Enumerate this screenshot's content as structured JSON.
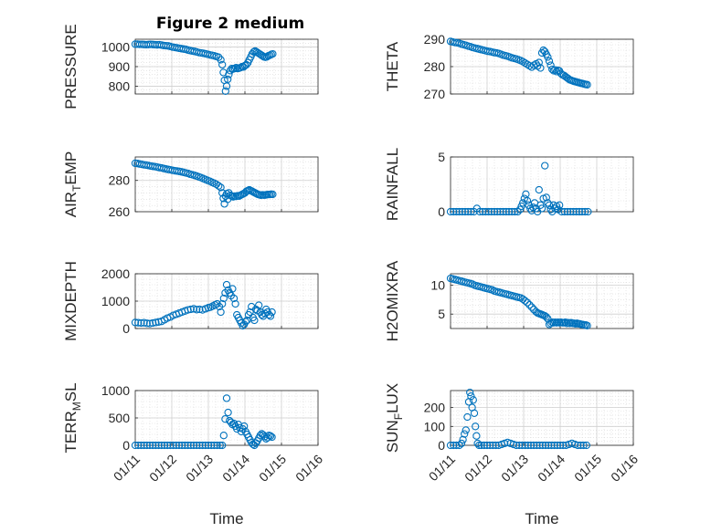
{
  "figure": {
    "title": "Figure 2 medium",
    "xlabel": "Time",
    "xticklabels": [
      "01/11",
      "01/12",
      "01/13",
      "01/14",
      "01/15",
      "01/16"
    ]
  },
  "chart_data": [
    {
      "type": "scatter",
      "ylabel": "PRESSURE",
      "ylim": [
        760,
        1040
      ],
      "yticks": [
        800,
        900,
        1000
      ],
      "yticklabels": [
        "800",
        "900",
        "1000"
      ],
      "grid": true,
      "x": [
        0.0,
        0.06,
        0.12,
        0.18,
        0.24,
        0.3,
        0.36,
        0.42,
        0.48,
        0.54,
        0.6,
        0.66,
        0.72,
        0.78,
        0.84,
        0.9,
        0.96,
        1.02,
        1.08,
        1.14,
        1.2,
        1.26,
        1.32,
        1.38,
        1.44,
        1.5,
        1.56,
        1.62,
        1.68,
        1.74,
        1.8,
        1.86,
        1.92,
        1.98,
        2.04,
        2.1,
        2.16,
        2.22,
        2.28,
        2.34,
        2.38,
        2.41,
        2.44,
        2.47,
        2.5,
        2.53,
        2.56,
        2.6,
        2.64,
        2.68,
        2.72,
        2.76,
        2.8,
        2.84,
        2.88,
        2.92,
        2.96,
        3.0,
        3.04,
        3.08,
        3.12,
        3.16,
        3.2,
        3.24,
        3.28,
        3.32,
        3.36,
        3.4,
        3.44,
        3.48,
        3.52,
        3.56,
        3.6,
        3.64,
        3.68,
        3.72,
        3.76
      ],
      "y": [
        1015,
        1015,
        1014,
        1014,
        1013,
        1012,
        1013,
        1014,
        1013,
        1012,
        1011,
        1012,
        1010,
        1008,
        1007,
        1006,
        1003,
        1000,
        998,
        996,
        994,
        992,
        990,
        988,
        985,
        982,
        980,
        978,
        975,
        972,
        970,
        968,
        966,
        963,
        960,
        958,
        955,
        952,
        948,
        935,
        910,
        870,
        830,
        775,
        800,
        835,
        860,
        880,
        890,
        888,
        890,
        895,
        890,
        892,
        895,
        900,
        898,
        905,
        910,
        920,
        935,
        950,
        965,
        975,
        980,
        975,
        970,
        965,
        960,
        955,
        950,
        948,
        950,
        955,
        958,
        962,
        965
      ]
    },
    {
      "type": "scatter",
      "ylabel": "THETA",
      "ylim": [
        270,
        290
      ],
      "yticks": [
        270,
        280,
        290
      ],
      "yticklabels": [
        "270",
        "280",
        "290"
      ],
      "grid": true,
      "x": [
        0.0,
        0.06,
        0.12,
        0.18,
        0.24,
        0.3,
        0.36,
        0.42,
        0.48,
        0.54,
        0.6,
        0.66,
        0.72,
        0.78,
        0.84,
        0.9,
        0.96,
        1.02,
        1.08,
        1.14,
        1.2,
        1.26,
        1.32,
        1.38,
        1.44,
        1.5,
        1.56,
        1.62,
        1.68,
        1.74,
        1.8,
        1.86,
        1.92,
        1.98,
        2.04,
        2.1,
        2.16,
        2.22,
        2.28,
        2.34,
        2.38,
        2.42,
        2.46,
        2.5,
        2.54,
        2.58,
        2.62,
        2.66,
        2.7,
        2.74,
        2.78,
        2.82,
        2.86,
        2.9,
        2.94,
        2.98,
        3.02,
        3.06,
        3.1,
        3.14,
        3.18,
        3.22,
        3.26,
        3.3,
        3.34,
        3.38,
        3.42,
        3.46,
        3.5,
        3.54,
        3.58,
        3.62,
        3.66,
        3.7,
        3.74
      ],
      "y": [
        289.2,
        289.0,
        288.8,
        288.7,
        288.5,
        288.2,
        288.0,
        287.8,
        287.5,
        287.3,
        287.0,
        286.8,
        286.6,
        286.4,
        286.2,
        286.0,
        285.8,
        285.6,
        285.5,
        285.3,
        285.1,
        285.0,
        284.8,
        284.5,
        284.2,
        284.0,
        283.8,
        283.5,
        283.2,
        283.0,
        282.8,
        282.5,
        282.2,
        281.8,
        281.3,
        280.8,
        280.3,
        279.8,
        280.5,
        281.0,
        280.2,
        281.5,
        279.5,
        285.0,
        286.0,
        285.5,
        284.5,
        283.5,
        282.0,
        280.5,
        279.0,
        278.5,
        278.8,
        278.2,
        278.6,
        278.4,
        277.5,
        277.0,
        276.8,
        276.4,
        276.0,
        275.6,
        275.2,
        275.0,
        274.8,
        274.6,
        274.5,
        274.3,
        274.2,
        274.0,
        273.9,
        273.8,
        273.6,
        273.5,
        273.4
      ]
    },
    {
      "type": "scatter",
      "ylabel": "AIR_TEMP",
      "ylim": [
        260,
        295
      ],
      "yticks": [
        260,
        280
      ],
      "yticklabels": [
        "260",
        "280"
      ],
      "grid": true,
      "x": [
        0.0,
        0.06,
        0.12,
        0.18,
        0.24,
        0.3,
        0.36,
        0.42,
        0.48,
        0.54,
        0.6,
        0.66,
        0.72,
        0.78,
        0.84,
        0.9,
        0.96,
        1.02,
        1.08,
        1.14,
        1.2,
        1.26,
        1.32,
        1.38,
        1.44,
        1.5,
        1.56,
        1.62,
        1.68,
        1.74,
        1.8,
        1.86,
        1.92,
        1.98,
        2.04,
        2.1,
        2.16,
        2.22,
        2.28,
        2.34,
        2.38,
        2.41,
        2.44,
        2.47,
        2.5,
        2.53,
        2.56,
        2.6,
        2.64,
        2.68,
        2.72,
        2.76,
        2.8,
        2.84,
        2.88,
        2.92,
        2.96,
        3.0,
        3.04,
        3.08,
        3.12,
        3.16,
        3.2,
        3.24,
        3.28,
        3.32,
        3.36,
        3.4,
        3.44,
        3.48,
        3.52,
        3.56,
        3.6,
        3.64,
        3.68,
        3.72,
        3.76
      ],
      "y": [
        291.0,
        290.8,
        290.5,
        290.3,
        290.0,
        289.8,
        289.5,
        289.2,
        289.0,
        288.8,
        288.5,
        288.2,
        288.0,
        287.6,
        287.3,
        287.0,
        286.8,
        286.5,
        286.2,
        286.0,
        285.8,
        285.5,
        285.2,
        284.8,
        284.5,
        284.0,
        283.6,
        283.2,
        282.8,
        282.3,
        281.8,
        281.2,
        280.6,
        280.0,
        279.5,
        278.8,
        278.2,
        277.5,
        276.5,
        275.5,
        272.0,
        268.5,
        265.0,
        270.0,
        271.5,
        268.0,
        272.0,
        270.5,
        270.0,
        269.5,
        270.0,
        269.8,
        270.2,
        270.0,
        270.5,
        271.0,
        271.5,
        272.0,
        273.0,
        273.5,
        274.0,
        273.5,
        273.0,
        272.5,
        272.0,
        271.5,
        271.0,
        270.8,
        270.5,
        270.8,
        270.6,
        270.7,
        270.9,
        271.0,
        271.0,
        271.2,
        271.1
      ]
    },
    {
      "type": "scatter",
      "ylabel": "RAINFALL",
      "ylim": [
        0,
        5
      ],
      "yticks": [
        0,
        5
      ],
      "yticklabels": [
        "0",
        "5"
      ],
      "grid": true,
      "x": [
        0.0,
        0.08,
        0.16,
        0.24,
        0.32,
        0.4,
        0.48,
        0.56,
        0.64,
        0.72,
        0.8,
        0.88,
        0.96,
        1.04,
        1.12,
        1.2,
        1.28,
        1.36,
        1.44,
        1.52,
        1.6,
        1.68,
        1.76,
        1.84,
        1.9,
        1.94,
        1.98,
        2.02,
        2.06,
        2.1,
        2.14,
        2.18,
        2.22,
        2.26,
        2.3,
        2.34,
        2.38,
        2.42,
        2.46,
        2.5,
        2.54,
        2.58,
        2.62,
        2.66,
        2.7,
        2.74,
        2.78,
        2.82,
        2.86,
        2.9,
        2.94,
        2.98,
        3.04,
        3.12,
        3.2,
        3.28,
        3.36,
        3.44,
        3.52,
        3.6,
        3.68,
        3.76
      ],
      "y": [
        0,
        0,
        0,
        0,
        0,
        0,
        0,
        0,
        0,
        0.3,
        0,
        0,
        0,
        0,
        0,
        0,
        0,
        0,
        0,
        0,
        0,
        0,
        0,
        0,
        0.2,
        0.5,
        0.8,
        1.2,
        1.6,
        1.0,
        0.6,
        0.3,
        0.1,
        0.4,
        0.8,
        0.3,
        0,
        2.0,
        0.6,
        0.3,
        1.2,
        4.2,
        1.3,
        0.8,
        0.6,
        0.2,
        0,
        0.6,
        0.3,
        0.5,
        0.2,
        0.6,
        0,
        0,
        0,
        0,
        0,
        0,
        0,
        0,
        0,
        0
      ]
    },
    {
      "type": "scatter",
      "ylabel": "MIXDEPTH",
      "ylim": [
        0,
        2000
      ],
      "yticks": [
        0,
        1000,
        2000
      ],
      "yticklabels": [
        "0",
        "1000",
        "2000"
      ],
      "grid": true,
      "x": [
        0.0,
        0.08,
        0.16,
        0.24,
        0.32,
        0.4,
        0.48,
        0.56,
        0.64,
        0.72,
        0.8,
        0.88,
        0.96,
        1.04,
        1.12,
        1.2,
        1.28,
        1.36,
        1.44,
        1.52,
        1.6,
        1.68,
        1.76,
        1.84,
        1.92,
        2.0,
        2.06,
        2.12,
        2.18,
        2.24,
        2.3,
        2.34,
        2.38,
        2.42,
        2.46,
        2.5,
        2.54,
        2.58,
        2.62,
        2.66,
        2.7,
        2.74,
        2.78,
        2.82,
        2.86,
        2.9,
        2.94,
        2.98,
        3.02,
        3.06,
        3.1,
        3.14,
        3.18,
        3.22,
        3.26,
        3.3,
        3.34,
        3.38,
        3.42,
        3.46,
        3.5,
        3.54,
        3.58,
        3.62,
        3.66,
        3.7,
        3.74
      ],
      "y": [
        220,
        210,
        200,
        210,
        190,
        180,
        200,
        220,
        240,
        260,
        320,
        380,
        420,
        480,
        520,
        560,
        600,
        640,
        680,
        700,
        720,
        690,
        700,
        680,
        720,
        760,
        780,
        820,
        860,
        900,
        800,
        600,
        900,
        1100,
        1300,
        1600,
        1400,
        1300,
        1200,
        1450,
        1100,
        900,
        500,
        400,
        300,
        200,
        100,
        150,
        250,
        300,
        500,
        600,
        800,
        400,
        300,
        700,
        650,
        850,
        600,
        500,
        450,
        550,
        700,
        600,
        500,
        450,
        600
      ]
    },
    {
      "type": "scatter",
      "ylabel": "H2OMIXRA",
      "ylim": [
        2.5,
        12
      ],
      "yticks": [
        5,
        10
      ],
      "yticklabels": [
        "5",
        "10"
      ],
      "grid": true,
      "x": [
        0.0,
        0.06,
        0.12,
        0.18,
        0.24,
        0.3,
        0.36,
        0.42,
        0.48,
        0.54,
        0.6,
        0.66,
        0.72,
        0.78,
        0.84,
        0.9,
        0.96,
        1.02,
        1.08,
        1.14,
        1.2,
        1.26,
        1.32,
        1.38,
        1.44,
        1.5,
        1.56,
        1.62,
        1.68,
        1.74,
        1.8,
        1.86,
        1.92,
        1.98,
        2.04,
        2.1,
        2.16,
        2.22,
        2.28,
        2.34,
        2.38,
        2.42,
        2.46,
        2.5,
        2.54,
        2.58,
        2.62,
        2.66,
        2.7,
        2.74,
        2.78,
        2.82,
        2.86,
        2.9,
        2.94,
        2.98,
        3.02,
        3.06,
        3.1,
        3.14,
        3.18,
        3.22,
        3.26,
        3.3,
        3.34,
        3.38,
        3.42,
        3.46,
        3.5,
        3.54,
        3.58,
        3.62,
        3.66,
        3.7,
        3.74
      ],
      "y": [
        11.2,
        11.1,
        11.0,
        10.9,
        10.8,
        10.7,
        10.6,
        10.5,
        10.4,
        10.3,
        10.2,
        10.0,
        9.9,
        9.8,
        9.7,
        9.6,
        9.5,
        9.4,
        9.3,
        9.2,
        9.0,
        8.9,
        8.8,
        8.7,
        8.6,
        8.5,
        8.4,
        8.3,
        8.2,
        8.1,
        8.0,
        7.9,
        7.8,
        7.6,
        7.3,
        7.0,
        6.6,
        6.2,
        5.8,
        5.4,
        5.2,
        5.1,
        5.0,
        4.9,
        4.8,
        4.7,
        4.5,
        4.2,
        3.2,
        3.4,
        3.6,
        3.5,
        3.6,
        3.5,
        3.6,
        3.5,
        3.6,
        3.5,
        3.5,
        3.6,
        3.4,
        3.5,
        3.4,
        3.5,
        3.4,
        3.4,
        3.3,
        3.4,
        3.3,
        3.3,
        3.2,
        3.2,
        3.1,
        3.1,
        3.0
      ]
    },
    {
      "type": "scatter",
      "ylabel": "TERR_MSL",
      "ylim": [
        0,
        1000
      ],
      "yticks": [
        0,
        500,
        1000
      ],
      "yticklabels": [
        "0",
        "500",
        "1000"
      ],
      "grid": true,
      "x": [
        0.0,
        0.08,
        0.16,
        0.24,
        0.32,
        0.4,
        0.48,
        0.56,
        0.64,
        0.72,
        0.8,
        0.88,
        0.96,
        1.04,
        1.12,
        1.2,
        1.28,
        1.36,
        1.44,
        1.52,
        1.6,
        1.68,
        1.76,
        1.84,
        1.92,
        2.0,
        2.08,
        2.16,
        2.24,
        2.32,
        2.38,
        2.42,
        2.46,
        2.5,
        2.54,
        2.58,
        2.62,
        2.66,
        2.7,
        2.74,
        2.78,
        2.82,
        2.86,
        2.9,
        2.94,
        2.98,
        3.02,
        3.06,
        3.1,
        3.14,
        3.18,
        3.22,
        3.26,
        3.3,
        3.34,
        3.38,
        3.42,
        3.46,
        3.5,
        3.54,
        3.58,
        3.62,
        3.66,
        3.7,
        3.74
      ],
      "y": [
        0,
        0,
        0,
        0,
        0,
        0,
        0,
        0,
        0,
        0,
        0,
        0,
        0,
        0,
        0,
        0,
        0,
        0,
        0,
        0,
        0,
        0,
        0,
        0,
        0,
        0,
        0,
        0,
        0,
        0,
        0,
        180,
        480,
        860,
        600,
        450,
        420,
        380,
        400,
        350,
        300,
        380,
        320,
        250,
        300,
        350,
        250,
        200,
        150,
        100,
        50,
        20,
        0,
        40,
        80,
        130,
        180,
        210,
        190,
        160,
        120,
        140,
        180,
        170,
        150
      ]
    },
    {
      "type": "scatter",
      "ylabel": "SUN_FLUX",
      "ylim": [
        0,
        290
      ],
      "yticks": [
        0,
        100,
        200
      ],
      "yticklabels": [
        "0",
        "100",
        "200"
      ],
      "grid": true,
      "x": [
        0.0,
        0.08,
        0.16,
        0.24,
        0.3,
        0.34,
        0.38,
        0.42,
        0.46,
        0.5,
        0.53,
        0.56,
        0.59,
        0.62,
        0.65,
        0.68,
        0.71,
        0.74,
        0.78,
        0.84,
        0.92,
        1.0,
        1.08,
        1.16,
        1.24,
        1.32,
        1.4,
        1.48,
        1.56,
        1.64,
        1.72,
        1.8,
        1.88,
        1.96,
        2.04,
        2.12,
        2.2,
        2.28,
        2.36,
        2.44,
        2.52,
        2.6,
        2.68,
        2.76,
        2.84,
        2.92,
        3.0,
        3.08,
        3.16,
        3.24,
        3.32,
        3.4,
        3.48,
        3.56,
        3.64,
        3.72
      ],
      "y": [
        0,
        0,
        0,
        0,
        10,
        30,
        60,
        80,
        150,
        230,
        280,
        260,
        200,
        240,
        170,
        100,
        50,
        10,
        0,
        0,
        0,
        0,
        0,
        0,
        0,
        0,
        5,
        10,
        15,
        10,
        5,
        0,
        0,
        0,
        0,
        0,
        0,
        0,
        0,
        0,
        0,
        0,
        0,
        0,
        0,
        0,
        0,
        0,
        0,
        5,
        10,
        5,
        0,
        0,
        0,
        0
      ]
    }
  ]
}
